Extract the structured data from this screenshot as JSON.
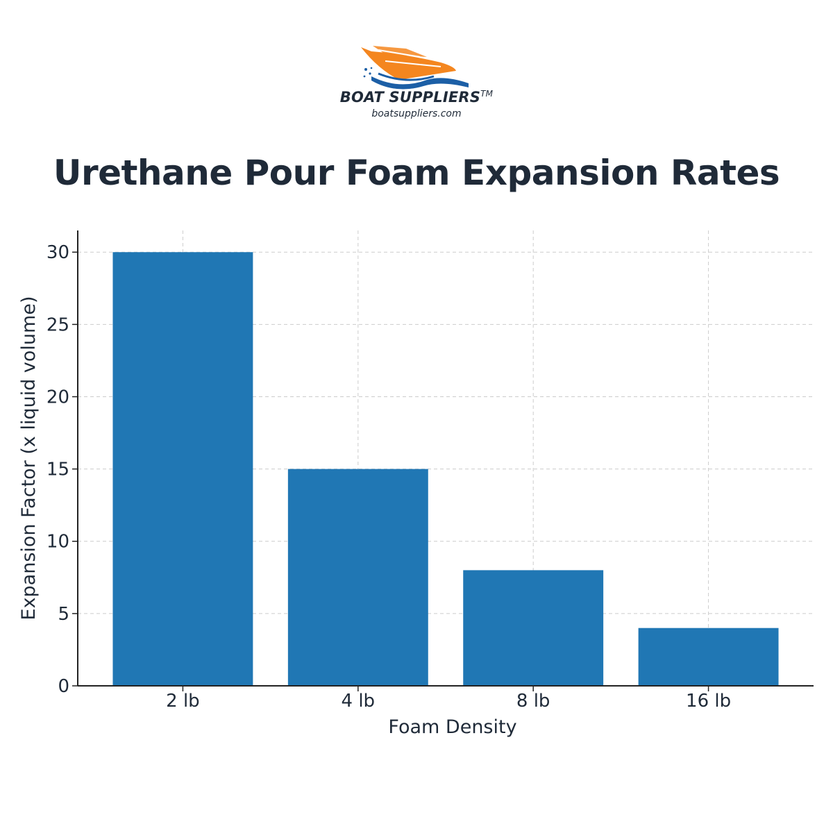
{
  "brand": {
    "name": "BOAT SUPPLIERS",
    "trademark": "TM",
    "url": "boatsuppliers.com"
  },
  "colors": {
    "bar": "#2077b4",
    "text": "#1f2a38",
    "grid": "#cccccc",
    "logo_orange": "#f4861f",
    "logo_blue": "#1c5fa6"
  },
  "chart_data": {
    "type": "bar",
    "title": "Urethane Pour Foam Expansion Rates",
    "categories": [
      "2 lb",
      "4 lb",
      "8 lb",
      "16 lb"
    ],
    "values": [
      30,
      15,
      8,
      4
    ],
    "xlabel": "Foam Density",
    "ylabel": "Expansion Factor (x liquid volume)",
    "ylim": [
      0,
      31.5
    ],
    "yticks": [
      0,
      5,
      10,
      15,
      20,
      25,
      30
    ],
    "grid": true,
    "grid_style": "dashed"
  }
}
